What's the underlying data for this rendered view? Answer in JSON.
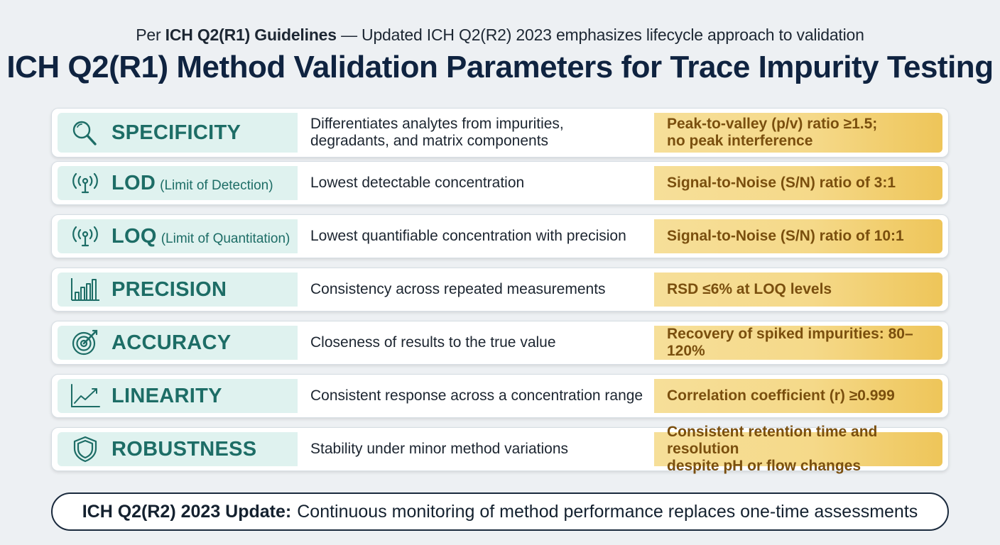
{
  "header": {
    "subtitle_prefix": "Per",
    "subtitle_bold": "ICH Q2(R1) Guidelines",
    "subtitle_rest": "— Updated ICH Q2(R2) 2023 emphasizes lifecycle approach to validation",
    "title": "ICH Q2(R1) Method Validation Parameters for Trace Impurity Testing"
  },
  "colors": {
    "parameter_band": "#dff2ef",
    "parameter_text": "#1d6d66",
    "criteria_band": "#f5d989",
    "criteria_text": "#7a4f0e",
    "title": "#0f2340"
  },
  "rows": [
    {
      "icon": "magnifier-icon",
      "name": "SPECIFICITY",
      "subname": "",
      "description": [
        "Differentiates analytes from impurities,",
        "degradants, and matrix components"
      ],
      "criteria": [
        "Peak-to-valley (p/v) ratio ≥1.5;",
        "no peak interference"
      ]
    },
    {
      "icon": "signal-icon",
      "name": "LOD",
      "subname": "(Limit of Detection)",
      "description": [
        "Lowest detectable concentration"
      ],
      "criteria": [
        "Signal-to-Noise (S/N) ratio of 3:1"
      ]
    },
    {
      "icon": "signal-icon",
      "name": "LOQ",
      "subname": "(Limit of Quantitation)",
      "description": [
        "Lowest quantifiable concentration with precision"
      ],
      "criteria": [
        "Signal-to-Noise (S/N) ratio of 10:1"
      ]
    },
    {
      "icon": "bar-chart-icon",
      "name": "PRECISION",
      "subname": "",
      "description": [
        "Consistency across repeated measurements"
      ],
      "criteria": [
        "RSD ≤6% at LOQ levels"
      ]
    },
    {
      "icon": "target-icon",
      "name": "ACCURACY",
      "subname": "",
      "description": [
        "Closeness of results to the true value"
      ],
      "criteria": [
        "Recovery of spiked impurities: 80–120%"
      ]
    },
    {
      "icon": "trend-line-icon",
      "name": "LINEARITY",
      "subname": "",
      "description": [
        "Consistent response across a concentration range"
      ],
      "criteria": [
        "Correlation coefficient (r) ≥0.999"
      ]
    },
    {
      "icon": "shield-icon",
      "name": "ROBUSTNESS",
      "subname": "",
      "description": [
        "Stability under minor method variations"
      ],
      "criteria": [
        "Consistent retention time and resolution",
        "despite pH or flow changes"
      ]
    }
  ],
  "footer": {
    "bold": "ICH Q2(R2) 2023 Update:",
    "text": "Continuous monitoring of method performance replaces one-time assessments"
  }
}
